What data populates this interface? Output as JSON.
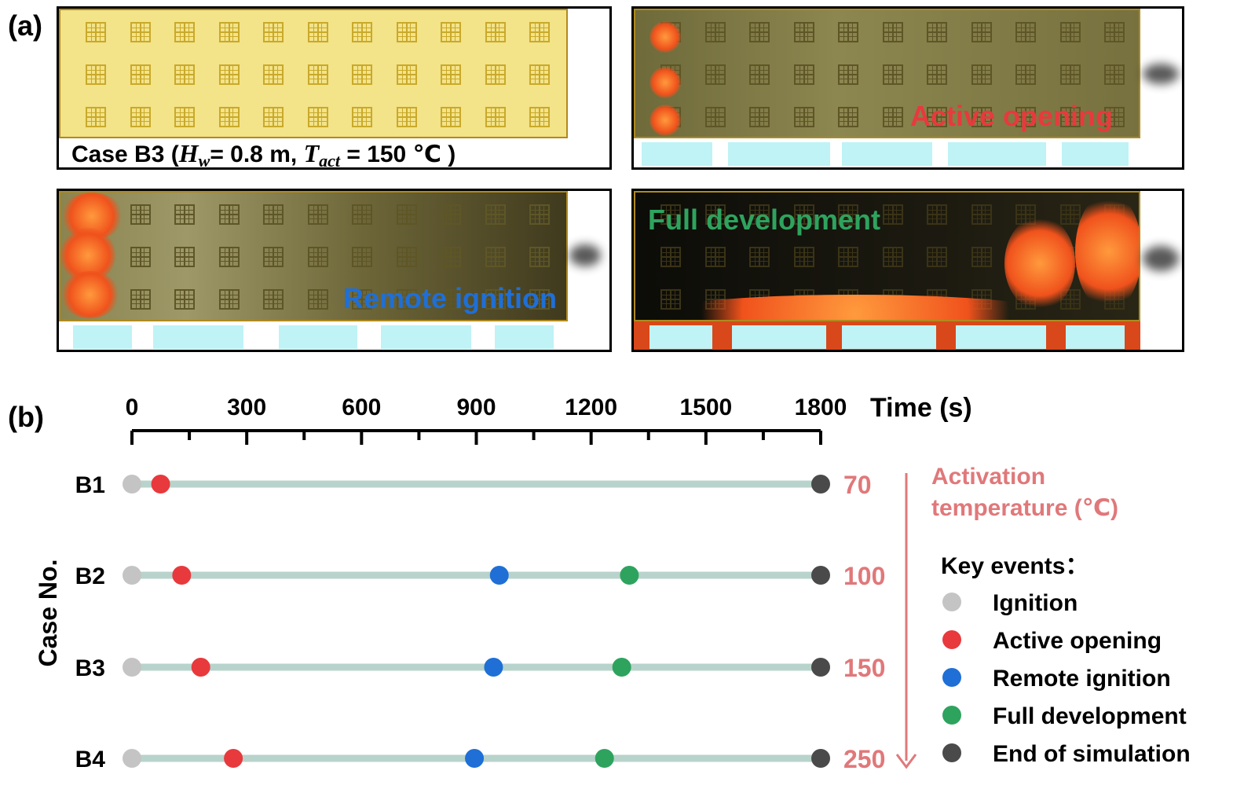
{
  "panel_a": {
    "label": "(a)",
    "caption": {
      "prefix": "Case B3  (",
      "hw_symbol": "H",
      "hw_sub": "w",
      "hw_value": "= 0.8 m,  ",
      "tact_symbol": "T",
      "tact_sub": "act",
      "tact_value": " = 150 ℃ )"
    },
    "stage_labels": {
      "active_opening": "Active opening",
      "remote_ignition": "Remote ignition",
      "full_development": "Full development"
    },
    "colors": {
      "facade_clean": "#f3e389",
      "active_text": "#e8393d",
      "remote_text": "#1f6fd6",
      "full_text": "#2ea35e"
    }
  },
  "panel_b": {
    "label": "(b)",
    "ylabel": "Case No.",
    "right_title_line1": "Activation",
    "right_title_line2": "temperature (℃)",
    "legend_title": "Key events：",
    "legend": [
      {
        "label": "Ignition",
        "color": "#c4c4c4"
      },
      {
        "label": "Active opening",
        "color": "#e8393d"
      },
      {
        "label": "Remote ignition",
        "color": "#1f6fd6"
      },
      {
        "label": "Full development",
        "color": "#2ea35e"
      },
      {
        "label": "End of simulation",
        "color": "#4a4a4a"
      }
    ]
  },
  "chart_data": {
    "type": "scatter",
    "xlabel": "Time (s)",
    "xlim": [
      0,
      1800
    ],
    "xticks": [
      0,
      300,
      600,
      900,
      1200,
      1500,
      1800
    ],
    "categories": [
      "B1",
      "B2",
      "B3",
      "B4"
    ],
    "activation_temperature": [
      "70",
      "100",
      "150",
      "250"
    ],
    "series": [
      {
        "name": "Ignition",
        "color": "#c4c4c4",
        "values": [
          0,
          0,
          0,
          0
        ]
      },
      {
        "name": "Active opening",
        "color": "#e8393d",
        "values": [
          75,
          130,
          180,
          265
        ]
      },
      {
        "name": "Remote ignition",
        "color": "#1f6fd6",
        "values": [
          null,
          960,
          945,
          895
        ]
      },
      {
        "name": "Full development",
        "color": "#2ea35e",
        "values": [
          null,
          1300,
          1280,
          1235
        ]
      },
      {
        "name": "End of simulation",
        "color": "#4a4a4a",
        "values": [
          1800,
          1800,
          1800,
          1800
        ]
      }
    ],
    "line_color": "#b8d3cb",
    "temp_color": "#e0787a"
  }
}
